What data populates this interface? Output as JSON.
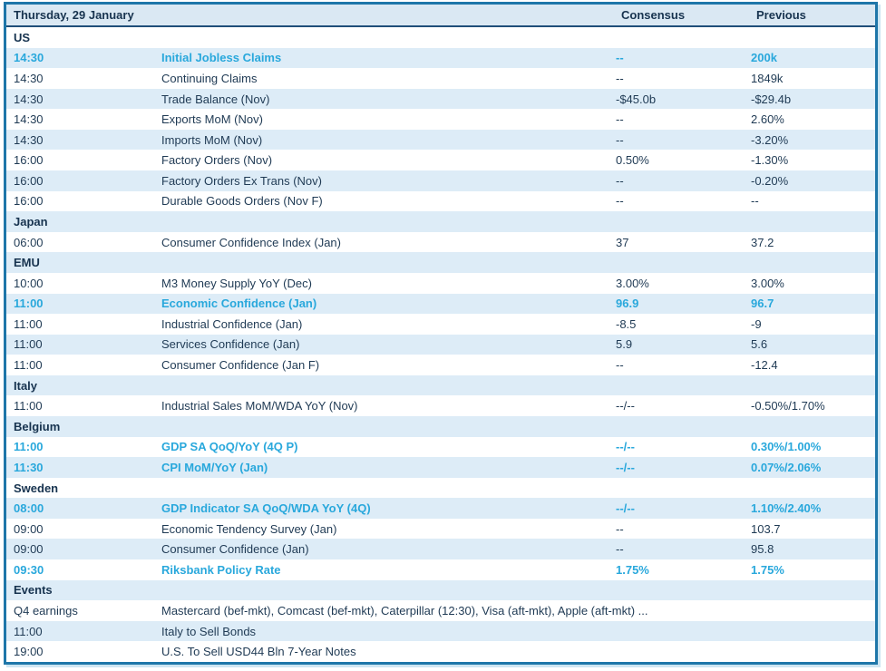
{
  "colors": {
    "outer_border": "#1e76a9",
    "header_underline": "#1f4e79",
    "header_bg": "#dae8f3",
    "alt_row_bg": "#ddecf7",
    "text_navy": "#1f3a54",
    "highlight_cyan": "#29a8dc",
    "shadow": "#cde5f2"
  },
  "table": {
    "title": "Thursday, 29 January",
    "columns": {
      "consensus": "Consensus",
      "previous": "Previous"
    },
    "rows": [
      {
        "type": "section",
        "label": "US"
      },
      {
        "type": "event",
        "time": "14:30",
        "event": "Initial Jobless Claims",
        "consensus": "--",
        "previous": "200k",
        "highlight": true
      },
      {
        "type": "event",
        "time": "14:30",
        "event": "Continuing Claims",
        "consensus": "--",
        "previous": "1849k",
        "highlight": false
      },
      {
        "type": "event",
        "time": "14:30",
        "event": "Trade Balance (Nov)",
        "consensus": "-$45.0b",
        "previous": "-$29.4b",
        "highlight": false
      },
      {
        "type": "event",
        "time": "14:30",
        "event": "Exports MoM (Nov)",
        "consensus": "--",
        "previous": "2.60%",
        "highlight": false
      },
      {
        "type": "event",
        "time": "14:30",
        "event": "Imports MoM (Nov)",
        "consensus": "--",
        "previous": "-3.20%",
        "highlight": false
      },
      {
        "type": "event",
        "time": "16:00",
        "event": "Factory Orders (Nov)",
        "consensus": "0.50%",
        "previous": "-1.30%",
        "highlight": false
      },
      {
        "type": "event",
        "time": "16:00",
        "event": "Factory Orders Ex Trans (Nov)",
        "consensus": "--",
        "previous": "-0.20%",
        "highlight": false
      },
      {
        "type": "event",
        "time": "16:00",
        "event": "Durable Goods Orders (Nov F)",
        "consensus": "--",
        "previous": "--",
        "highlight": false
      },
      {
        "type": "section",
        "label": "Japan"
      },
      {
        "type": "event",
        "time": "06:00",
        "event": "Consumer Confidence Index (Jan)",
        "consensus": "37",
        "previous": "37.2",
        "highlight": false
      },
      {
        "type": "section",
        "label": "EMU"
      },
      {
        "type": "event",
        "time": "10:00",
        "event": "M3 Money Supply YoY (Dec)",
        "consensus": "3.00%",
        "previous": "3.00%",
        "highlight": false
      },
      {
        "type": "event",
        "time": "11:00",
        "event": "Economic Confidence (Jan)",
        "consensus": "96.9",
        "previous": "96.7",
        "highlight": true
      },
      {
        "type": "event",
        "time": "11:00",
        "event": "Industrial Confidence (Jan)",
        "consensus": "-8.5",
        "previous": "-9",
        "highlight": false
      },
      {
        "type": "event",
        "time": "11:00",
        "event": "Services Confidence (Jan)",
        "consensus": "5.9",
        "previous": "5.6",
        "highlight": false
      },
      {
        "type": "event",
        "time": "11:00",
        "event": "Consumer Confidence (Jan F)",
        "consensus": "--",
        "previous": "-12.4",
        "highlight": false
      },
      {
        "type": "section",
        "label": "Italy"
      },
      {
        "type": "event",
        "time": "11:00",
        "event": "Industrial Sales MoM/WDA YoY (Nov)",
        "consensus": "--/--",
        "previous": "-0.50%/1.70%",
        "highlight": false
      },
      {
        "type": "section",
        "label": "Belgium"
      },
      {
        "type": "event",
        "time": "11:00",
        "event": "GDP SA QoQ/YoY (4Q P)",
        "consensus": "--/--",
        "previous": "0.30%/1.00%",
        "highlight": true
      },
      {
        "type": "event",
        "time": "11:30",
        "event": "CPI MoM/YoY (Jan)",
        "consensus": "--/--",
        "previous": "0.07%/2.06%",
        "highlight": true
      },
      {
        "type": "section",
        "label": "Sweden"
      },
      {
        "type": "event",
        "time": "08:00",
        "event": "GDP Indicator SA QoQ/WDA YoY (4Q)",
        "consensus": "--/--",
        "previous": "1.10%/2.40%",
        "highlight": true
      },
      {
        "type": "event",
        "time": "09:00",
        "event": "Economic Tendency Survey (Jan)",
        "consensus": "--",
        "previous": "103.7",
        "highlight": false
      },
      {
        "type": "event",
        "time": "09:00",
        "event": "Consumer Confidence (Jan)",
        "consensus": "--",
        "previous": "95.8",
        "highlight": false
      },
      {
        "type": "event",
        "time": "09:30",
        "event": "Riksbank Policy Rate",
        "consensus": "1.75%",
        "previous": "1.75%",
        "highlight": true
      },
      {
        "type": "section",
        "label": "Events"
      },
      {
        "type": "event",
        "time": "Q4 earnings",
        "event": "Mastercard (bef-mkt), Comcast (bef-mkt), Caterpillar (12:30), Visa (aft-mkt), Apple (aft-mkt) ...",
        "consensus": "",
        "previous": "",
        "highlight": false
      },
      {
        "type": "event",
        "time": "11:00",
        "event": "Italy to Sell Bonds",
        "consensus": "",
        "previous": "",
        "highlight": false
      },
      {
        "type": "event",
        "time": "19:00",
        "event": "U.S. To Sell USD44 Bln 7-Year Notes",
        "consensus": "",
        "previous": "",
        "highlight": false
      }
    ]
  }
}
